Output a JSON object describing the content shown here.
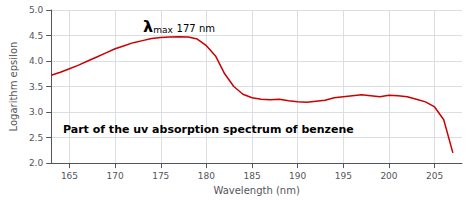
{
  "chart_data": {
    "type": "line",
    "title": "Part of the uv absorption spectrum of benzene",
    "xlabel": "Wavelength (nm)",
    "ylabel": "Logarithm epsilon",
    "annotations": [
      "λ",
      "max",
      "177 nm"
    ],
    "x": [
      163,
      164,
      165,
      166,
      167,
      168,
      169,
      170,
      171,
      172,
      173,
      174,
      175,
      176,
      177,
      178,
      179,
      180,
      181,
      182,
      183,
      184,
      185,
      186,
      187,
      188,
      189,
      190,
      191,
      192,
      193,
      194,
      195,
      196,
      197,
      198,
      199,
      200,
      201,
      202,
      203,
      204,
      205,
      206,
      207
    ],
    "values": [
      3.72,
      3.78,
      3.85,
      3.92,
      4.0,
      4.08,
      4.16,
      4.24,
      4.3,
      4.36,
      4.4,
      4.44,
      4.46,
      4.47,
      4.475,
      4.47,
      4.43,
      4.3,
      4.1,
      3.75,
      3.5,
      3.35,
      3.28,
      3.25,
      3.24,
      3.25,
      3.22,
      3.2,
      3.19,
      3.21,
      3.23,
      3.28,
      3.3,
      3.32,
      3.34,
      3.32,
      3.3,
      3.33,
      3.32,
      3.3,
      3.25,
      3.2,
      3.1,
      2.85,
      2.2
    ],
    "color": "#cc0000",
    "xlim": [
      163,
      208
    ],
    "ylim": [
      2.0,
      5.0
    ],
    "xticks": [
      165,
      170,
      175,
      180,
      185,
      190,
      195,
      200,
      205
    ],
    "yticks": [
      {
        "value": 2.0,
        "label": "2.0"
      },
      {
        "value": 2.5,
        "label": "2.5"
      },
      {
        "value": 3.0,
        "label": "3.0"
      },
      {
        "value": 3.5,
        "label": "3.5"
      },
      {
        "value": 4.0,
        "label": "4.0"
      },
      {
        "value": 4.5,
        "label": "4.5"
      },
      {
        "value": 5.0,
        "label": "5.0"
      }
    ],
    "grid": true
  }
}
